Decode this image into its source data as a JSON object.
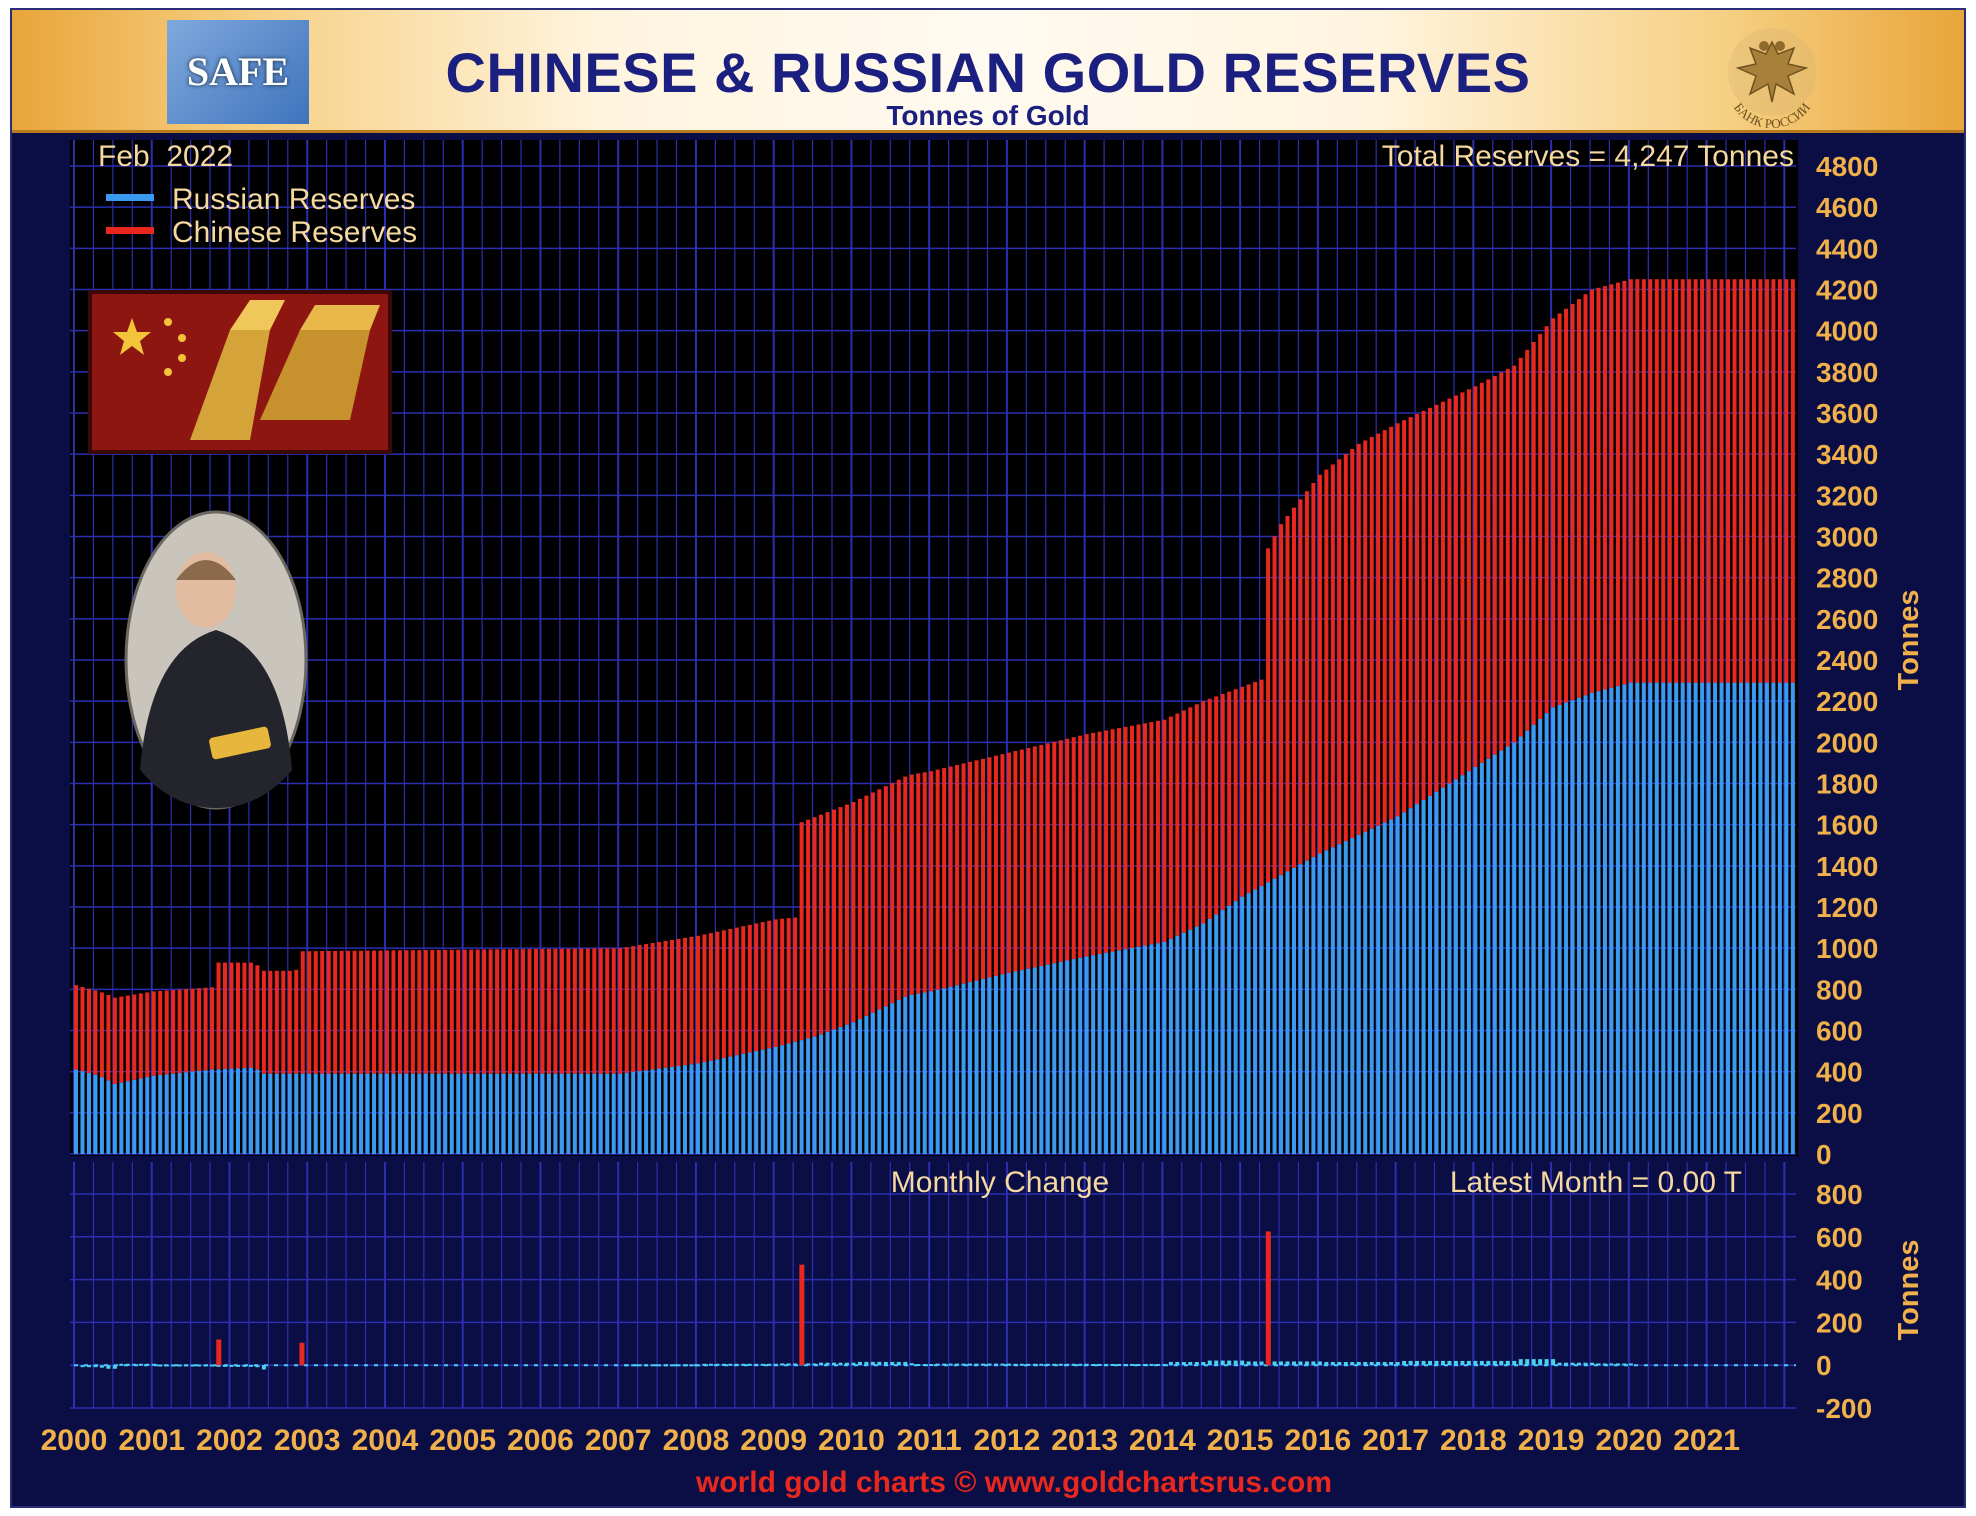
{
  "header": {
    "title": "CHINESE & RUSSIAN GOLD RESERVES",
    "subtitle": "Tonnes of Gold",
    "left_logo_text": "SAFE",
    "right_logo_text": "БАНК РОССИИ"
  },
  "labels": {
    "date": "Feb  2022",
    "total": "Total Reserves = 4,247 Tonnes",
    "monthly_change": "Monthly Change",
    "latest_month": "Latest Month = 0.00 T",
    "footer": "world gold charts © www.goldchartsrus.com"
  },
  "legend": [
    {
      "name": "Russian Reserves",
      "color": "#3a9af0"
    },
    {
      "name": "Chinese Reserves",
      "color": "#e8281e"
    }
  ],
  "colors": {
    "background": "#000000",
    "grid": "#2b2fb0",
    "axis_text": "#f0b04a",
    "russia": "#3a9af0",
    "china": "#e8281e",
    "change_cyan": "#49d2f0",
    "footer": "#e8281e"
  },
  "chart_data": [
    {
      "type": "bar",
      "stacked": true,
      "title": "CHINESE & RUSSIAN GOLD RESERVES",
      "ylabel": "Tonnes",
      "ylim": [
        0,
        4800
      ],
      "yticks": [
        0,
        200,
        400,
        600,
        800,
        1000,
        1200,
        1400,
        1600,
        1800,
        2000,
        2200,
        2400,
        2600,
        2800,
        3000,
        3200,
        3400,
        3600,
        3800,
        4000,
        4200,
        4400,
        4600,
        4800
      ],
      "x_tick_labels": [
        "2000",
        "2001",
        "2002",
        "2003",
        "2004",
        "2005",
        "2006",
        "2007",
        "2008",
        "2009",
        "2010",
        "2011",
        "2012",
        "2013",
        "2014",
        "2015",
        "2016",
        "2017",
        "2018",
        "2019",
        "2020",
        "2021"
      ],
      "x_range": [
        2000.0,
        2022.15
      ],
      "frequency": "monthly, from Jan 2000 to Feb 2022",
      "russia_knots": [
        [
          2000.0,
          410
        ],
        [
          2000.3,
          380
        ],
        [
          2000.5,
          340
        ],
        [
          2001.0,
          380
        ],
        [
          2001.75,
          410
        ],
        [
          2002.3,
          420
        ],
        [
          2002.4,
          390
        ],
        [
          2007.0,
          390
        ],
        [
          2008.0,
          440
        ],
        [
          2009.0,
          520
        ],
        [
          2009.5,
          570
        ],
        [
          2010.0,
          640
        ],
        [
          2010.7,
          770
        ],
        [
          2011.0,
          790
        ],
        [
          2012.0,
          880
        ],
        [
          2013.0,
          960
        ],
        [
          2014.0,
          1030
        ],
        [
          2014.5,
          1120
        ],
        [
          2015.0,
          1250
        ],
        [
          2016.0,
          1460
        ],
        [
          2017.0,
          1640
        ],
        [
          2018.0,
          1880
        ],
        [
          2018.5,
          2000
        ],
        [
          2019.0,
          2170
        ],
        [
          2019.5,
          2240
        ],
        [
          2020.0,
          2290
        ],
        [
          2021.0,
          2290
        ],
        [
          2022.15,
          2290
        ]
      ],
      "total_knots": [
        [
          2000.0,
          820
        ],
        [
          2000.3,
          790
        ],
        [
          2000.5,
          760
        ],
        [
          2001.0,
          790
        ],
        [
          2001.75,
          810
        ],
        [
          2001.83,
          930
        ],
        [
          2002.3,
          930
        ],
        [
          2002.4,
          890
        ],
        [
          2002.83,
          890
        ],
        [
          2002.9,
          985
        ],
        [
          2007.0,
          1000
        ],
        [
          2008.0,
          1060
        ],
        [
          2009.0,
          1140
        ],
        [
          2009.28,
          1150
        ],
        [
          2009.32,
          1610
        ],
        [
          2010.0,
          1710
        ],
        [
          2010.7,
          1840
        ],
        [
          2011.0,
          1860
        ],
        [
          2012.0,
          1950
        ],
        [
          2013.0,
          2040
        ],
        [
          2014.0,
          2110
        ],
        [
          2014.5,
          2200
        ],
        [
          2015.29,
          2310
        ],
        [
          2015.33,
          2940
        ],
        [
          2015.5,
          3060
        ],
        [
          2016.0,
          3300
        ],
        [
          2016.5,
          3450
        ],
        [
          2017.0,
          3550
        ],
        [
          2017.5,
          3640
        ],
        [
          2018.0,
          3730
        ],
        [
          2018.5,
          3830
        ],
        [
          2019.0,
          4060
        ],
        [
          2019.5,
          4200
        ],
        [
          2020.0,
          4250
        ],
        [
          2022.15,
          4250
        ]
      ]
    },
    {
      "type": "bar",
      "title": "Monthly Change",
      "ylabel": "Tonnes",
      "ylim": [
        -200,
        800
      ],
      "yticks": [
        -200,
        0,
        200,
        400,
        600,
        800
      ],
      "spikes": [
        {
          "x": 2001.83,
          "value": 120,
          "series": "Chinese Reserves"
        },
        {
          "x": 2002.9,
          "value": 105,
          "series": "Chinese Reserves"
        },
        {
          "x": 2009.33,
          "value": 470,
          "series": "Chinese Reserves"
        },
        {
          "x": 2015.33,
          "value": 625,
          "series": "Chinese Reserves"
        }
      ],
      "latest_month": 0.0
    }
  ]
}
